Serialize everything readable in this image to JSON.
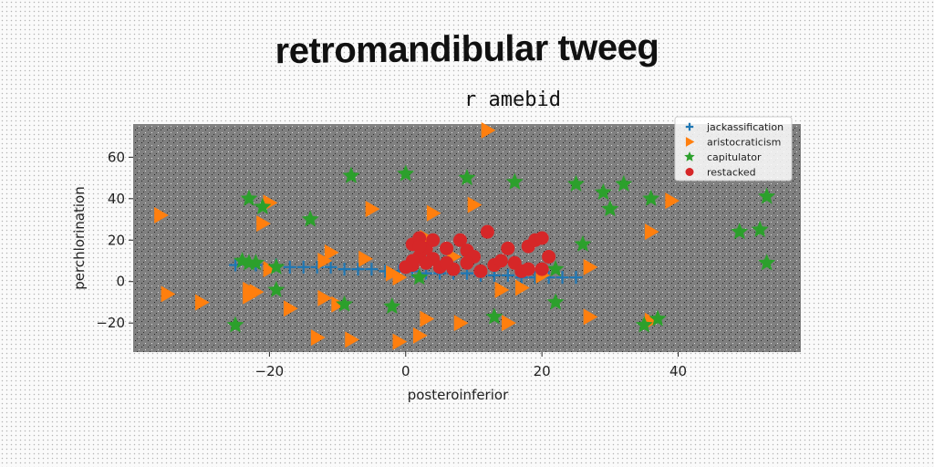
{
  "figure": {
    "suptitle": "retromandibular tweeg"
  },
  "chart_data": {
    "type": "scatter",
    "title": "r amebid",
    "xlabel": "posteroinferior",
    "ylabel": "perchlorination",
    "xlim": [
      -40,
      58
    ],
    "ylim": [
      -34,
      76
    ],
    "xticks": [
      -20,
      0,
      20,
      40
    ],
    "yticks": [
      -20,
      0,
      20,
      40,
      60
    ],
    "grid": false,
    "legend_position": "top-right",
    "background": "#808080",
    "series": [
      {
        "name": "jackassification",
        "marker": "plus",
        "color": "#1f77b4",
        "points": [
          [
            -25,
            8
          ],
          [
            -22,
            8
          ],
          [
            -19,
            8
          ],
          [
            -17,
            7
          ],
          [
            -15,
            7
          ],
          [
            -13,
            7
          ],
          [
            -11,
            7
          ],
          [
            -9,
            6
          ],
          [
            -7,
            6
          ],
          [
            -5,
            6
          ],
          [
            -3,
            5
          ],
          [
            -1,
            5
          ],
          [
            1,
            5
          ],
          [
            3,
            4
          ],
          [
            5,
            4
          ],
          [
            7,
            4
          ],
          [
            9,
            4
          ],
          [
            11,
            3
          ],
          [
            13,
            3
          ],
          [
            15,
            3
          ],
          [
            17,
            2
          ],
          [
            19,
            2
          ],
          [
            21,
            2
          ],
          [
            23,
            2
          ],
          [
            25,
            2
          ]
        ]
      },
      {
        "name": "aristocraticism",
        "marker": "triangle-right",
        "color": "#ff7f0e",
        "points": [
          [
            12,
            73
          ],
          [
            -36,
            32
          ],
          [
            -20,
            38
          ],
          [
            -21,
            28
          ],
          [
            -5,
            35
          ],
          [
            4,
            33
          ],
          [
            10,
            37
          ],
          [
            39,
            39
          ],
          [
            36,
            24
          ],
          [
            -11,
            14
          ],
          [
            -12,
            10
          ],
          [
            -6,
            11
          ],
          [
            -20,
            6
          ],
          [
            -35,
            -6
          ],
          [
            -30,
            -10
          ],
          [
            -23,
            -7
          ],
          [
            -23,
            -4
          ],
          [
            -22,
            -5
          ],
          [
            -17,
            -13
          ],
          [
            -12,
            -8
          ],
          [
            -10,
            -11
          ],
          [
            -2,
            4
          ],
          [
            -1,
            2
          ],
          [
            3,
            -18
          ],
          [
            8,
            -20
          ],
          [
            14,
            -4
          ],
          [
            17,
            -3
          ],
          [
            15,
            -20
          ],
          [
            27,
            -17
          ],
          [
            27,
            7
          ],
          [
            20,
            3
          ],
          [
            36,
            -19
          ],
          [
            -13,
            -27
          ],
          [
            -8,
            -28
          ],
          [
            -1,
            -29
          ],
          [
            2,
            -26
          ],
          [
            7,
            12
          ],
          [
            3,
            21
          ]
        ]
      },
      {
        "name": "capitulator",
        "marker": "star",
        "color": "#2ca02c",
        "points": [
          [
            -8,
            51
          ],
          [
            0,
            52
          ],
          [
            9,
            50
          ],
          [
            16,
            48
          ],
          [
            25,
            47
          ],
          [
            29,
            43
          ],
          [
            32,
            47
          ],
          [
            36,
            40
          ],
          [
            53,
            41
          ],
          [
            -23,
            40
          ],
          [
            -21,
            36
          ],
          [
            -14,
            30
          ],
          [
            30,
            35
          ],
          [
            49,
            24
          ],
          [
            52,
            25
          ],
          [
            53,
            9
          ],
          [
            -24,
            10
          ],
          [
            -22,
            9
          ],
          [
            -19,
            7
          ],
          [
            -19,
            -4
          ],
          [
            -9,
            -11
          ],
          [
            -2,
            -12
          ],
          [
            2,
            2
          ],
          [
            13,
            -17
          ],
          [
            22,
            -10
          ],
          [
            22,
            6
          ],
          [
            26,
            18
          ],
          [
            35,
            -21
          ],
          [
            37,
            -18
          ],
          [
            -25,
            -21
          ],
          [
            -23,
            9
          ]
        ]
      },
      {
        "name": "restacked",
        "marker": "circle",
        "color": "#d62728",
        "points": [
          [
            1,
            18
          ],
          [
            2,
            21
          ],
          [
            3,
            16
          ],
          [
            2,
            12
          ],
          [
            1,
            8
          ],
          [
            4,
            11
          ],
          [
            6,
            16
          ],
          [
            8,
            20
          ],
          [
            9,
            15
          ],
          [
            10,
            12
          ],
          [
            2,
            17
          ],
          [
            3,
            9
          ],
          [
            5,
            7
          ],
          [
            7,
            6
          ],
          [
            9,
            9
          ],
          [
            12,
            24
          ],
          [
            13,
            8
          ],
          [
            15,
            16
          ],
          [
            16,
            9
          ],
          [
            18,
            17
          ],
          [
            19,
            20
          ],
          [
            20,
            21
          ],
          [
            21,
            12
          ],
          [
            17,
            5
          ],
          [
            18,
            6
          ],
          [
            20,
            6
          ],
          [
            4,
            20
          ],
          [
            6,
            9
          ],
          [
            1,
            10
          ],
          [
            0,
            7
          ],
          [
            14,
            10
          ],
          [
            11,
            5
          ]
        ]
      }
    ]
  }
}
